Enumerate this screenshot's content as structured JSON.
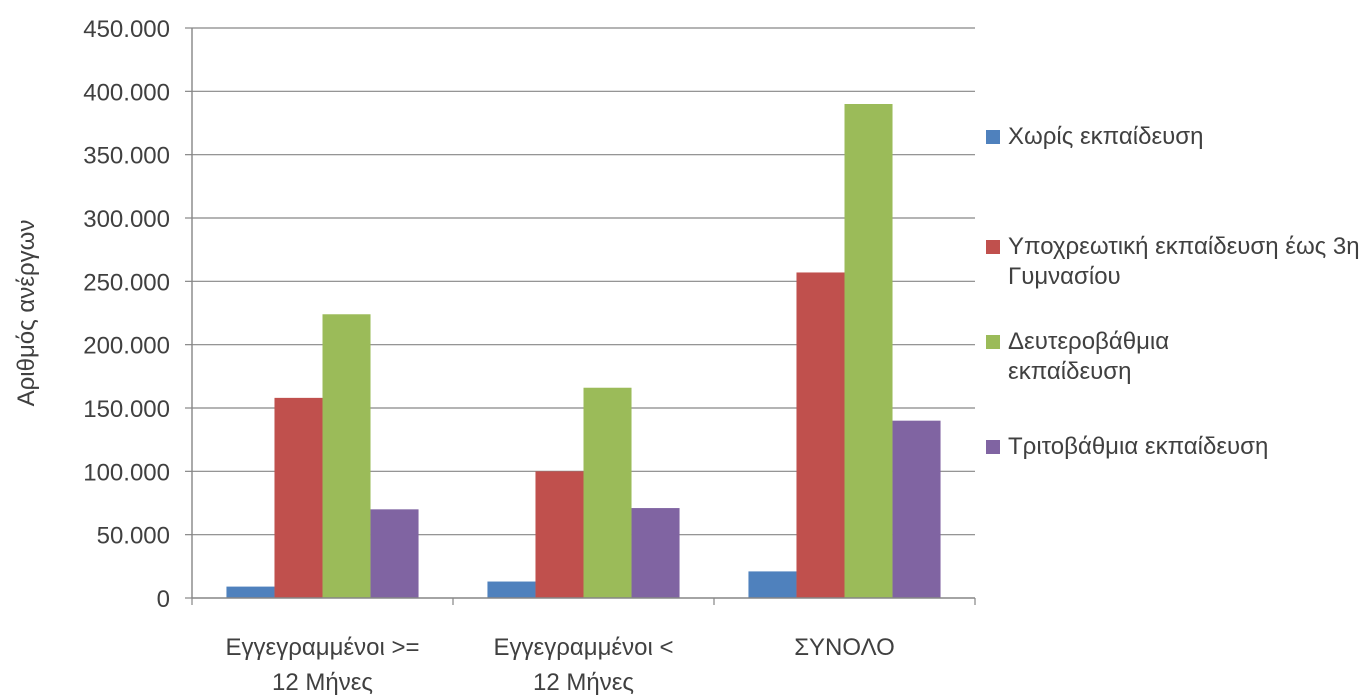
{
  "chart_data": {
    "type": "bar",
    "title": "",
    "xlabel": "",
    "ylabel": "Αριθμός ανέργων",
    "ylim": [
      0,
      450000
    ],
    "yticks": [
      0,
      50000,
      100000,
      150000,
      200000,
      250000,
      300000,
      350000,
      400000,
      450000
    ],
    "ytick_labels": [
      "0",
      "50.000",
      "100.000",
      "150.000",
      "200.000",
      "250.000",
      "300.000",
      "350.000",
      "400.000",
      "450.000"
    ],
    "grid": true,
    "legend_position": "right",
    "categories": [
      [
        "Εγγεγραμμένοι >=",
        "12 Μήνες"
      ],
      [
        "Εγγεγραμμένοι <",
        "12 Μήνες"
      ],
      [
        "ΣΥΝΟΛΟ"
      ]
    ],
    "series": [
      {
        "name": "Χωρίς εκπαίδευση",
        "color": "#4f81bd",
        "values": [
          9000,
          13000,
          21000
        ]
      },
      {
        "name": "Υποχρεωτική εκπαίδευση έως 3η Γυμνασίου",
        "color": "#c0504d",
        "values": [
          158000,
          100000,
          257000
        ]
      },
      {
        "name": "Δευτεροβάθμια εκπαίδευση",
        "color": "#9bbb59",
        "values": [
          224000,
          166000,
          390000
        ]
      },
      {
        "name": "Τριτοβάθμια εκπαίδευση",
        "color": "#8064a2",
        "values": [
          70000,
          71000,
          140000
        ]
      }
    ]
  }
}
